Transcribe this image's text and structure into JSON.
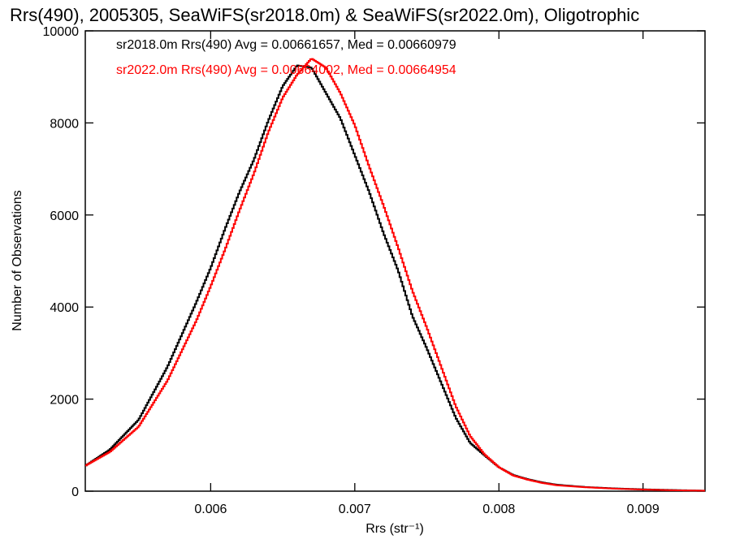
{
  "chart_data": {
    "type": "line",
    "title": "Rrs(490), 2005305, SeaWiFS(sr2018.0m) & SeaWiFS(sr2022.0m), Oligotrophic",
    "xlabel": "Rrs (str⁻¹)",
    "ylabel": "Number of Observations",
    "xlim": [
      0.00513,
      0.00943
    ],
    "ylim": [
      0,
      10000
    ],
    "xticks": [
      0.006,
      0.007,
      0.008,
      0.009
    ],
    "xtick_labels": [
      "0.006",
      "0.007",
      "0.008",
      "0.009"
    ],
    "yticks": [
      0,
      2000,
      4000,
      6000,
      8000,
      10000
    ],
    "ytick_labels": [
      "0",
      "2000",
      "4000",
      "6000",
      "8000",
      "10000"
    ],
    "grid": false,
    "legend_position": "top-left",
    "series": [
      {
        "name": "sr2018.0m Rrs(490) Avg = 0.00661657, Med = 0.00660979",
        "color": "#000000",
        "x": [
          0.00513,
          0.0053,
          0.0055,
          0.0057,
          0.0059,
          0.006,
          0.0061,
          0.0062,
          0.0063,
          0.0064,
          0.0065,
          0.0066,
          0.0067,
          0.0068,
          0.0069,
          0.007,
          0.0071,
          0.0072,
          0.0073,
          0.0074,
          0.0075,
          0.0076,
          0.0077,
          0.0078,
          0.0079,
          0.008,
          0.0081,
          0.0082,
          0.0083,
          0.0084,
          0.0086,
          0.0088,
          0.009,
          0.0092,
          0.00943
        ],
        "y": [
          550,
          900,
          1550,
          2700,
          4100,
          4850,
          5700,
          6500,
          7200,
          8050,
          8800,
          9250,
          9200,
          8650,
          8100,
          7300,
          6500,
          5600,
          4800,
          3800,
          3100,
          2350,
          1600,
          1050,
          780,
          520,
          350,
          260,
          190,
          140,
          90,
          60,
          40,
          25,
          10
        ]
      },
      {
        "name": "sr2022.0m Rrs(490) Avg = 0.00664002, Med = 0.00664954",
        "color": "#ff0000",
        "x": [
          0.00513,
          0.0053,
          0.0055,
          0.0057,
          0.0059,
          0.006,
          0.0061,
          0.0062,
          0.0063,
          0.0064,
          0.0065,
          0.0066,
          0.0067,
          0.0068,
          0.0069,
          0.007,
          0.0071,
          0.0072,
          0.0073,
          0.0074,
          0.0075,
          0.0076,
          0.0077,
          0.0078,
          0.0079,
          0.008,
          0.0081,
          0.0082,
          0.0083,
          0.0084,
          0.0086,
          0.0088,
          0.009,
          0.0092,
          0.00943
        ],
        "y": [
          550,
          850,
          1400,
          2400,
          3700,
          4450,
          5250,
          6100,
          6900,
          7800,
          8550,
          9050,
          9400,
          9200,
          8650,
          7950,
          7050,
          6200,
          5300,
          4350,
          3550,
          2700,
          1850,
          1200,
          800,
          520,
          340,
          250,
          180,
          130,
          85,
          55,
          35,
          20,
          10
        ]
      }
    ]
  }
}
